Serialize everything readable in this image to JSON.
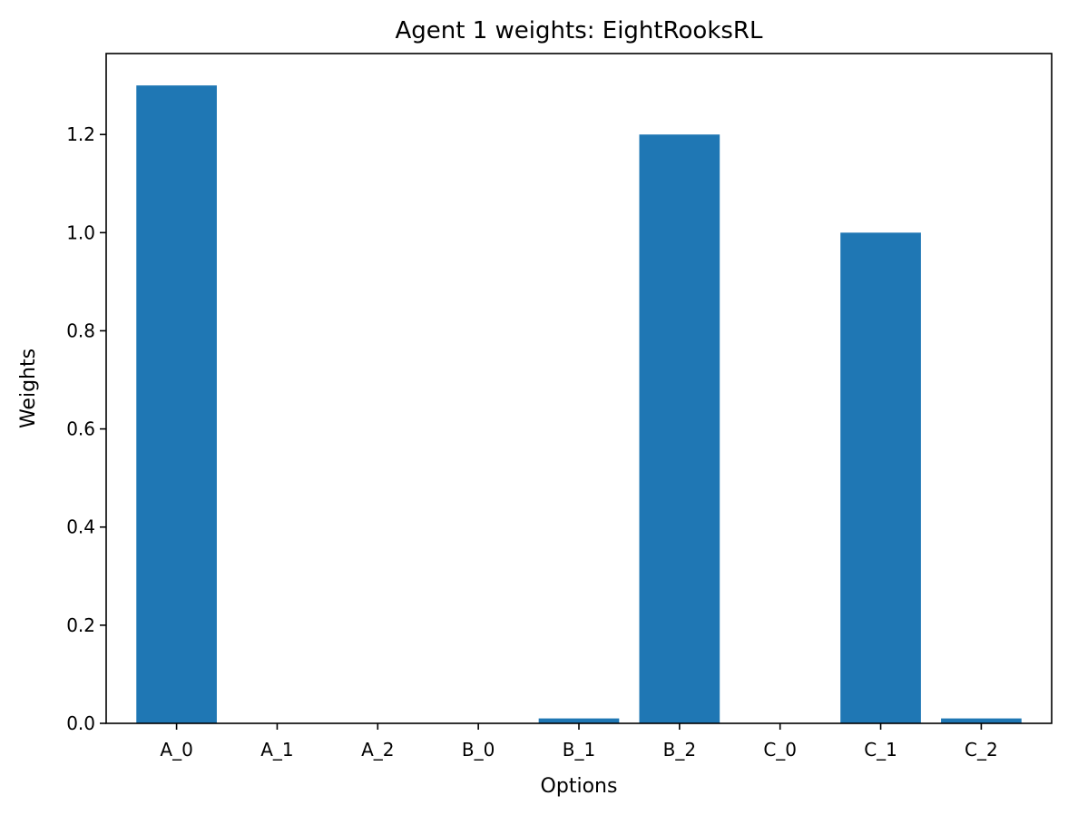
{
  "chart_data": {
    "type": "bar",
    "title": "Agent 1 weights: EightRooksRL",
    "xlabel": "Options",
    "ylabel": "Weights",
    "categories": [
      "A_0",
      "A_1",
      "A_2",
      "B_0",
      "B_1",
      "B_2",
      "C_0",
      "C_1",
      "C_2"
    ],
    "values": [
      1.3,
      0.0,
      0.0,
      0.0,
      0.01,
      1.2,
      0.0,
      1.0,
      0.01
    ],
    "ylim": [
      0,
      1.365
    ],
    "yticks": [
      0.0,
      0.2,
      0.4,
      0.6,
      0.8,
      1.0,
      1.2
    ],
    "ytick_labels": [
      "0.0",
      "0.2",
      "0.4",
      "0.6",
      "0.8",
      "1.0",
      "1.2"
    ],
    "grid": false,
    "bar_color": "#1f77b4"
  }
}
